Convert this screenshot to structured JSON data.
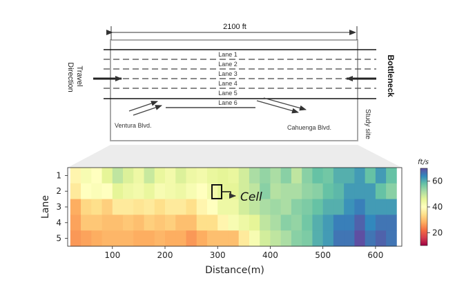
{
  "site": {
    "length_label": "2100 ft",
    "lanes": [
      "Lane 1",
      "Lane 2",
      "Lane 3",
      "Lane 4",
      "Lane 5",
      "Lane 6"
    ],
    "travel_direction": [
      "Travel",
      "Direction"
    ],
    "bottleneck": "Bottleneck",
    "study_site": "Study site",
    "ramp_left": "Ventura Blvd.",
    "ramp_right": "Cahuenga Blvd."
  },
  "annotation": {
    "cell_label": "Cell"
  },
  "chart_data": {
    "type": "heatmap",
    "xlabel": "Distance(m)",
    "ylabel": "Lane",
    "x_ticks": [
      100,
      200,
      300,
      400,
      500,
      600
    ],
    "y_ticks": [
      1,
      2,
      3,
      4,
      5
    ],
    "xlim": [
      15,
      650
    ],
    "colorbar": {
      "unit": "ft/s",
      "range": [
        10,
        70
      ],
      "ticks": [
        20,
        40,
        60
      ],
      "colormap": "Spectral"
    },
    "x_centers": [
      30,
      50,
      70,
      90,
      110,
      130,
      150,
      170,
      190,
      210,
      230,
      250,
      270,
      290,
      310,
      330,
      350,
      370,
      390,
      410,
      430,
      450,
      470,
      490,
      510,
      530,
      550,
      570,
      590,
      610,
      630
    ],
    "values": [
      [
        38,
        42,
        40,
        46,
        50,
        47,
        44,
        49,
        45,
        43,
        47,
        44,
        43,
        45,
        46,
        45,
        48,
        52,
        54,
        52,
        55,
        50,
        55,
        58,
        57,
        60,
        60,
        62,
        58,
        62,
        58
      ],
      [
        36,
        40,
        41,
        40,
        46,
        44,
        43,
        45,
        42,
        43,
        44,
        42,
        40,
        43,
        46,
        46,
        48,
        50,
        55,
        51,
        52,
        52,
        54,
        55,
        58,
        59,
        62,
        62,
        62,
        58,
        55
      ],
      [
        28,
        33,
        34,
        32,
        36,
        36,
        35,
        36,
        34,
        36,
        36,
        34,
        38,
        40,
        44,
        44,
        48,
        50,
        52,
        53,
        52,
        55,
        56,
        58,
        60,
        60,
        63,
        65,
        62,
        62,
        62
      ],
      [
        27,
        31,
        31,
        30,
        30,
        31,
        30,
        32,
        31,
        32,
        30,
        30,
        34,
        34,
        38,
        42,
        44,
        46,
        50,
        52,
        55,
        54,
        57,
        60,
        62,
        65,
        65,
        68,
        64,
        66,
        66
      ],
      [
        26,
        27,
        28,
        29,
        29,
        29,
        28,
        28,
        29,
        28,
        28,
        26,
        28,
        30,
        30,
        30,
        36,
        42,
        48,
        50,
        52,
        55,
        56,
        60,
        62,
        66,
        66,
        70,
        66,
        68,
        66
      ]
    ]
  }
}
